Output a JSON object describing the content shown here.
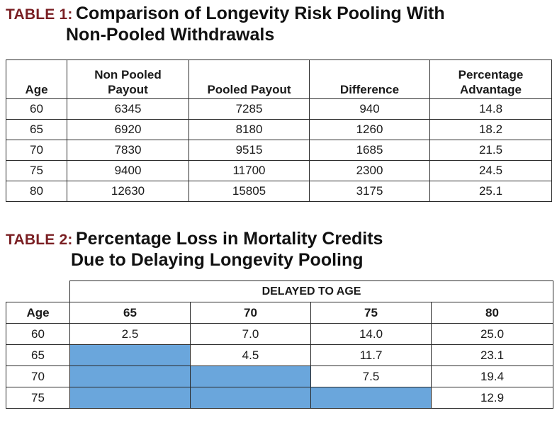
{
  "table1": {
    "label": "TABLE 1:",
    "title_line1": "Comparison of Longevity Risk Pooling With",
    "title_line2": "Non-Pooled Withdrawals",
    "headers": [
      "Age",
      "Non Pooled Payout",
      "Pooled Payout",
      "Difference",
      "Percentage Advantage"
    ],
    "header_lines": [
      [
        "Age"
      ],
      [
        "Non Pooled",
        "Payout"
      ],
      [
        "Pooled Payout"
      ],
      [
        "Difference"
      ],
      [
        "Percentage",
        "Advantage"
      ]
    ],
    "rows": [
      [
        "60",
        "6345",
        "7285",
        "940",
        "14.8"
      ],
      [
        "65",
        "6920",
        "8180",
        "1260",
        "18.2"
      ],
      [
        "70",
        "7830",
        "9515",
        "1685",
        "21.5"
      ],
      [
        "75",
        "9400",
        "11700",
        "2300",
        "24.5"
      ],
      [
        "80",
        "12630",
        "15805",
        "3175",
        "25.1"
      ]
    ]
  },
  "table2": {
    "label": "TABLE 2:",
    "title_line1": "Percentage Loss in Mortality Credits",
    "title_line2": "Due to Delaying Longevity Pooling",
    "group_header": "DELAYED TO AGE",
    "headers": [
      "Age",
      "65",
      "70",
      "75",
      "80"
    ],
    "rows": [
      [
        "60",
        "2.5",
        "7.0",
        "14.0",
        "25.0"
      ],
      [
        "65",
        "",
        "4.5",
        "11.7",
        "23.1"
      ],
      [
        "70",
        "",
        "",
        "7.5",
        "19.4"
      ],
      [
        "75",
        "",
        "",
        "",
        "12.9"
      ]
    ],
    "shade_color": "#6aa6dc"
  }
}
